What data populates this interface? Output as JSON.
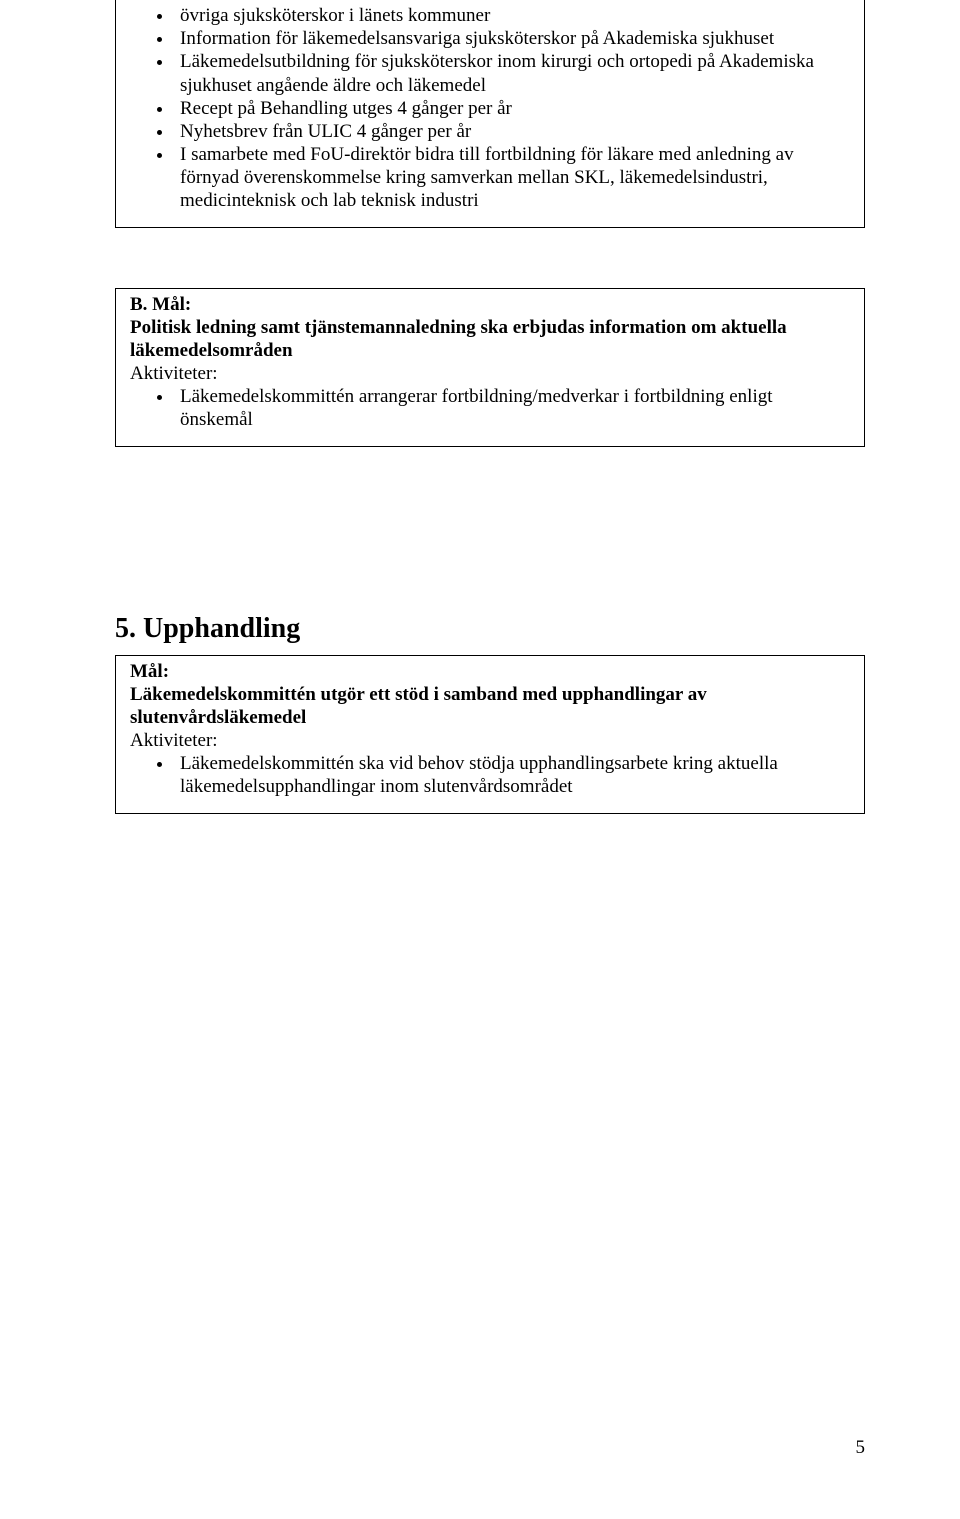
{
  "box1": {
    "bullets": [
      "övriga sjuksköterskor i länets kommuner",
      "Information för läkemedelsansvariga sjuksköterskor på Akademiska sjukhuset",
      "Läkemedelsutbildning för sjuksköterskor inom kirurgi och ortopedi på Akademiska sjukhuset angående äldre och läkemedel",
      "Recept på Behandling utges 4 gånger per år",
      "Nyhetsbrev från ULIC 4 gånger per år",
      "I samarbete med FoU-direktör bidra till fortbildning för läkare med anledning av förnyad överenskommelse kring samverkan mellan SKL, läkemedelsindustri, medicinteknisk och lab teknisk industri"
    ]
  },
  "box2": {
    "heading": "B. Mål:",
    "intro_bold1": "Politisk ledning samt tjänstemannaledning ska erbjudas information om aktuella läkemedelsområden",
    "activities_label": "Aktiviteter:",
    "bullets": [
      "Läkemedelskommittén arrangerar fortbildning/medverkar i fortbildning enligt önskemål"
    ]
  },
  "section5": {
    "title": "5. Upphandling"
  },
  "box3": {
    "mal_label": "Mål:",
    "intro_bold": "Läkemedelskommittén utgör ett stöd i samband med upphandlingar av slutenvårdsläkemedel",
    "activities_label": "Aktiviteter:",
    "bullets": [
      "Läkemedelskommittén ska vid behov stödja upphandlingsarbete kring aktuella läkemedelsupphandlingar inom slutenvårdsområdet"
    ]
  },
  "page_number": "5"
}
